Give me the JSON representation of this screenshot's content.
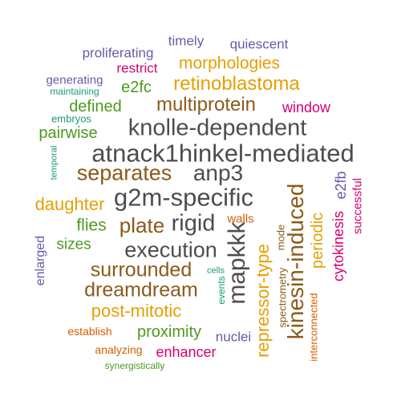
{
  "colors": {
    "gray": "#4d4d4d",
    "brown": "#8b5a1a",
    "gold": "#e69f00",
    "magenta": "#d6006f",
    "purple": "#6a5aa6",
    "green": "#4d9a1f",
    "teal": "#1a9a7a",
    "orange": "#d55e00"
  },
  "words": [
    {
      "text": "timely",
      "color": "purple"
    },
    {
      "text": "quiescent",
      "color": "purple"
    },
    {
      "text": "proliferating",
      "color": "purple"
    },
    {
      "text": "morphologies",
      "color": "gold"
    },
    {
      "text": "restrict",
      "color": "magenta"
    },
    {
      "text": "generating",
      "color": "purple"
    },
    {
      "text": "maintaining",
      "color": "teal"
    },
    {
      "text": "e2fc",
      "color": "green"
    },
    {
      "text": "retinoblastoma",
      "color": "gold"
    },
    {
      "text": "defined",
      "color": "green"
    },
    {
      "text": "multiprotein",
      "color": "brown"
    },
    {
      "text": "window",
      "color": "magenta"
    },
    {
      "text": "embryos",
      "color": "teal"
    },
    {
      "text": "pairwise",
      "color": "green"
    },
    {
      "text": "knolle-dependent",
      "color": "gray"
    },
    {
      "text": "atnack1hinkel-mediated",
      "color": "gray"
    },
    {
      "text": "temporal",
      "color": "teal"
    },
    {
      "text": "separates",
      "color": "brown"
    },
    {
      "text": "anp3",
      "color": "gray"
    },
    {
      "text": "kinesin-induced",
      "color": "brown"
    },
    {
      "text": "cytokinesis",
      "color": "magenta"
    },
    {
      "text": "e2fb",
      "color": "purple"
    },
    {
      "text": "successful",
      "color": "magenta"
    },
    {
      "text": "daughter",
      "color": "gold"
    },
    {
      "text": "g2m-specific",
      "color": "gray"
    },
    {
      "text": "flies",
      "color": "green"
    },
    {
      "text": "plate",
      "color": "brown"
    },
    {
      "text": "rigid",
      "color": "gray"
    },
    {
      "text": "walls",
      "color": "orange"
    },
    {
      "text": "periodic",
      "color": "gold"
    },
    {
      "text": "enlarged",
      "color": "purple"
    },
    {
      "text": "sizes",
      "color": "green"
    },
    {
      "text": "execution",
      "color": "gray"
    },
    {
      "text": "mapkkk",
      "color": "gray"
    },
    {
      "text": "repressor-type",
      "color": "gold"
    },
    {
      "text": "mode",
      "color": "brown"
    },
    {
      "text": "spectrometry",
      "color": "brown"
    },
    {
      "text": "surrounded",
      "color": "brown"
    },
    {
      "text": "cells",
      "color": "teal"
    },
    {
      "text": "dreamdream",
      "color": "brown"
    },
    {
      "text": "events",
      "color": "teal"
    },
    {
      "text": "interconnected",
      "color": "orange"
    },
    {
      "text": "post-mitotic",
      "color": "gold"
    },
    {
      "text": "establish",
      "color": "orange"
    },
    {
      "text": "proximity",
      "color": "green"
    },
    {
      "text": "nuclei",
      "color": "purple"
    },
    {
      "text": "analyzing",
      "color": "orange"
    },
    {
      "text": "enhancer",
      "color": "magenta"
    },
    {
      "text": "synergistically",
      "color": "green"
    }
  ]
}
